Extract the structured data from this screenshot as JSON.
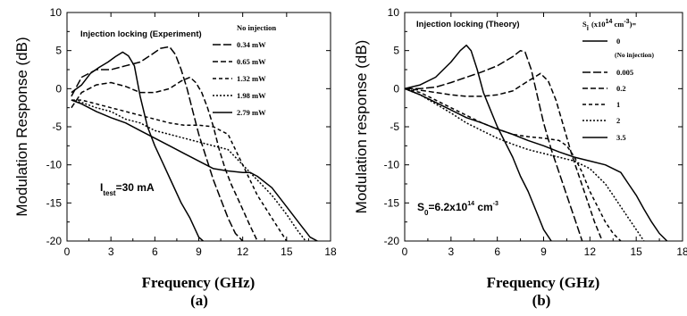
{
  "chart_data": [
    {
      "type": "line",
      "panel_label": "(a)",
      "title": "Injection locking (Experiment)",
      "xlabel": "Frequency (GHz)",
      "ylabel": "Modulation Response (dB)",
      "xlim": [
        0,
        18
      ],
      "ylim": [
        -20,
        10
      ],
      "xticks": [
        "0",
        "3",
        "6",
        "9",
        "12",
        "15",
        "18"
      ],
      "yticks": [
        "10",
        "5",
        "0",
        "-5",
        "-10",
        "-15",
        "-20"
      ],
      "grid": false,
      "legend_position": "top-right",
      "annotation": {
        "main": "I",
        "sub": "test",
        "rest": "=30 mA"
      },
      "series": [
        {
          "name": "No injection",
          "dash": "solid",
          "x": [
            0.3,
            1.0,
            1.6,
            2.2,
            2.8,
            3.3,
            3.8,
            4.2,
            4.6,
            5.0,
            5.5,
            6.0,
            6.6,
            7.2,
            7.8,
            8.4,
            9.0,
            9.3
          ],
          "y": [
            -0.5,
            0.5,
            2.0,
            2.8,
            3.5,
            4.2,
            4.8,
            4.3,
            3.0,
            -1.0,
            -5.0,
            -7.5,
            -10.0,
            -12.5,
            -15.0,
            -17.0,
            -19.5,
            -20.0
          ]
        },
        {
          "name": "0.34 mW",
          "dash": "longdash",
          "x": [
            0.3,
            1.0,
            2.0,
            3.0,
            4.0,
            5.0,
            5.8,
            6.4,
            7.0,
            7.4,
            7.8,
            8.2,
            8.6,
            9.0,
            9.5,
            10.0,
            10.5,
            11.0,
            11.5,
            12.0
          ],
          "y": [
            -1.0,
            1.5,
            2.5,
            2.5,
            3.0,
            3.5,
            4.5,
            5.3,
            5.5,
            4.5,
            2.5,
            0.0,
            -3.0,
            -6.0,
            -9.0,
            -12.0,
            -14.5,
            -17.0,
            -19.0,
            -20.0
          ]
        },
        {
          "name": "0.65 mW",
          "dash": "medium",
          "x": [
            0.3,
            1.0,
            2.0,
            3.0,
            4.0,
            5.0,
            6.0,
            7.0,
            7.8,
            8.4,
            8.8,
            9.2,
            9.6,
            10.0,
            10.4,
            10.8,
            11.2,
            11.8,
            12.5,
            13.0
          ],
          "y": [
            -2.5,
            -0.5,
            0.5,
            0.8,
            0.3,
            -0.5,
            -0.5,
            0.0,
            1.0,
            1.5,
            0.8,
            -0.5,
            -2.5,
            -5.0,
            -8.0,
            -10.5,
            -12.5,
            -15.0,
            -18.0,
            -20.0
          ]
        },
        {
          "name": "1.32 mW",
          "dash": "short",
          "x": [
            0.3,
            1.0,
            2.0,
            3.0,
            4.0,
            5.0,
            6.0,
            7.0,
            8.0,
            9.0,
            10.0,
            10.5,
            11.0,
            11.5,
            12.0,
            12.5,
            13.0,
            13.5,
            14.0,
            14.5,
            15.0
          ],
          "y": [
            -1.5,
            -1.5,
            -2.0,
            -2.5,
            -3.0,
            -3.5,
            -4.0,
            -4.5,
            -4.8,
            -4.8,
            -5.0,
            -5.5,
            -6.0,
            -8.0,
            -10.0,
            -12.0,
            -14.0,
            -15.5,
            -17.0,
            -18.5,
            -20.0
          ]
        },
        {
          "name": "1.98 mW",
          "dash": "tiny",
          "x": [
            0.3,
            1.0,
            2.0,
            3.0,
            4.0,
            5.0,
            6.0,
            7.0,
            8.0,
            9.0,
            10.0,
            11.0,
            11.5,
            12.0,
            12.5,
            13.0,
            14.0,
            15.0,
            15.7,
            16.3
          ],
          "y": [
            -1.5,
            -1.8,
            -2.5,
            -3.0,
            -4.0,
            -4.5,
            -5.5,
            -6.0,
            -6.5,
            -7.0,
            -7.5,
            -8.0,
            -9.0,
            -10.0,
            -11.0,
            -12.0,
            -14.0,
            -16.5,
            -18.5,
            -20.0
          ]
        },
        {
          "name": "2.79 mW",
          "dash": "solid",
          "x": [
            0.3,
            1.0,
            2.0,
            3.0,
            4.0,
            5.0,
            6.0,
            7.0,
            8.0,
            9.0,
            10.0,
            11.0,
            12.0,
            12.5,
            13.0,
            14.0,
            15.0,
            16.0,
            16.6,
            17.1
          ],
          "y": [
            -1.5,
            -2.0,
            -3.0,
            -3.8,
            -4.5,
            -5.5,
            -6.5,
            -7.5,
            -8.5,
            -9.5,
            -10.5,
            -10.8,
            -11.0,
            -11.0,
            -11.5,
            -13.0,
            -15.5,
            -18.0,
            -19.5,
            -20.0
          ]
        }
      ]
    },
    {
      "type": "line",
      "panel_label": "(b)",
      "title": "Injection locking (Theory)",
      "xlabel": "Frequency (GHz)",
      "ylabel": "Modulation response (dB)",
      "xlim": [
        0,
        18
      ],
      "ylim": [
        -20,
        10
      ],
      "xticks": [
        "0",
        "3",
        "6",
        "9",
        "12",
        "15",
        "18"
      ],
      "yticks": [
        "10",
        "5",
        "0",
        "-5",
        "-10",
        "-15",
        "-20"
      ],
      "grid": false,
      "legend_position": "top-right",
      "legend_header": {
        "symbol": "S",
        "sub": "i",
        "paren": "(x10",
        "sup": "14",
        "unit": " cm",
        "unit_sup": "-3",
        "end": ")="
      },
      "legend_note": "(No injection)",
      "annotation": {
        "main": "S",
        "sub": "0",
        "mid": "=6.2x10",
        "sup": "14",
        "unit": " cm",
        "unit_sup": "-3"
      },
      "series": [
        {
          "name": "0",
          "dash": "solid",
          "x": [
            0,
            1.0,
            2.0,
            3.0,
            3.6,
            4.0,
            4.3,
            4.7,
            5.1,
            5.5,
            6.0,
            6.5,
            7.0,
            7.5,
            8.0,
            8.5,
            9.0,
            9.5
          ],
          "y": [
            0.0,
            0.5,
            1.5,
            3.5,
            5.0,
            5.7,
            5.0,
            2.5,
            -0.5,
            -2.5,
            -5.0,
            -7.0,
            -9.0,
            -11.5,
            -13.5,
            -16.0,
            -18.5,
            -20.0
          ]
        },
        {
          "name": "0.005",
          "dash": "longdash",
          "x": [
            0,
            1.0,
            2.0,
            3.0,
            4.0,
            5.0,
            6.0,
            7.0,
            7.5,
            7.8,
            8.2,
            8.6,
            9.0,
            9.5,
            10.0,
            10.5,
            11.0,
            11.5
          ],
          "y": [
            0.0,
            0.0,
            0.2,
            0.8,
            1.5,
            2.2,
            3.0,
            4.2,
            5.0,
            4.8,
            2.5,
            -1.0,
            -4.5,
            -8.0,
            -11.0,
            -14.0,
            -17.0,
            -20.0
          ]
        },
        {
          "name": "0.2",
          "dash": "medium",
          "x": [
            0,
            1.0,
            2.0,
            3.0,
            4.0,
            5.0,
            6.0,
            7.0,
            8.0,
            8.8,
            9.3,
            9.8,
            10.3,
            10.8,
            11.3,
            11.8,
            12.3,
            12.8
          ],
          "y": [
            0.0,
            -0.2,
            -0.5,
            -0.8,
            -1.0,
            -1.0,
            -0.8,
            -0.3,
            1.0,
            2.0,
            1.0,
            -1.5,
            -5.0,
            -8.5,
            -11.5,
            -14.5,
            -17.5,
            -20.0
          ]
        },
        {
          "name": "1",
          "dash": "short",
          "x": [
            0,
            1.0,
            2.0,
            3.0,
            4.0,
            5.0,
            6.0,
            7.0,
            8.0,
            9.0,
            10.0,
            10.5,
            11.0,
            11.5,
            12.0,
            12.5,
            13.0,
            13.5,
            14.0
          ],
          "y": [
            0.0,
            -0.5,
            -1.5,
            -2.5,
            -3.5,
            -4.5,
            -5.3,
            -6.0,
            -6.3,
            -6.5,
            -6.8,
            -7.5,
            -9.0,
            -11.0,
            -13.5,
            -15.5,
            -17.5,
            -19.0,
            -20.0
          ]
        },
        {
          "name": "2",
          "dash": "tiny",
          "x": [
            0,
            1.0,
            2.0,
            3.0,
            4.0,
            5.0,
            6.0,
            7.0,
            8.0,
            9.0,
            10.0,
            11.0,
            12.0,
            13.0,
            13.5,
            14.0,
            14.5,
            15.0,
            15.5
          ],
          "y": [
            0.0,
            -0.8,
            -2.0,
            -3.2,
            -4.5,
            -5.5,
            -6.5,
            -7.3,
            -8.0,
            -8.5,
            -9.0,
            -9.5,
            -10.5,
            -12.5,
            -14.0,
            -15.5,
            -17.0,
            -18.5,
            -20.0
          ]
        },
        {
          "name": "3.5",
          "dash": "solid",
          "x": [
            0,
            1.0,
            2.0,
            3.0,
            4.0,
            5.0,
            6.0,
            7.0,
            8.0,
            9.0,
            10.0,
            11.0,
            12.0,
            13.0,
            14.0,
            14.5,
            15.0,
            15.5,
            16.0,
            16.5,
            17.0
          ],
          "y": [
            0.0,
            -0.8,
            -1.8,
            -2.8,
            -3.8,
            -4.5,
            -5.3,
            -6.0,
            -6.8,
            -7.5,
            -8.3,
            -9.0,
            -9.5,
            -10.0,
            -11.0,
            -12.5,
            -14.0,
            -15.8,
            -17.5,
            -19.0,
            -20.0
          ]
        }
      ]
    }
  ]
}
